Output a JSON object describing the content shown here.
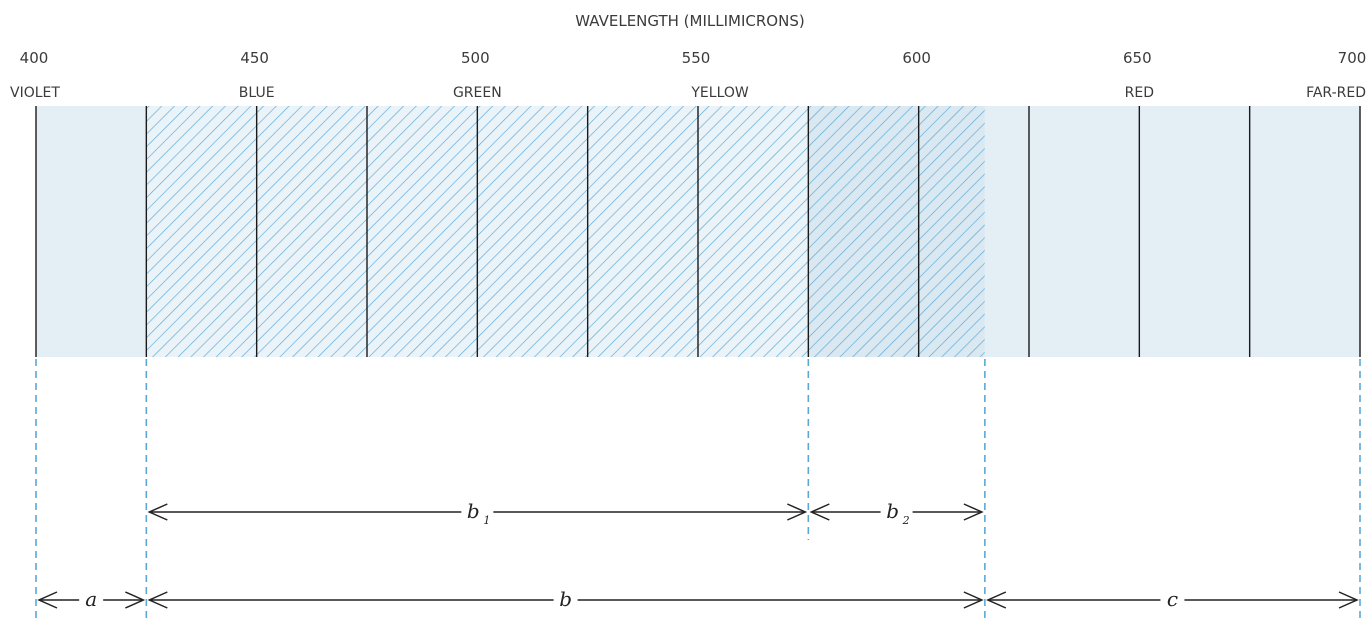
{
  "figure": {
    "axis_title": "WAVELENGTH (MILLIMICRONS)",
    "tick_labels": [
      "400",
      "450",
      "500",
      "550",
      "600",
      "650",
      "700"
    ],
    "colors": [
      {
        "wl": 400,
        "name": "VIOLET"
      },
      {
        "wl": 450,
        "name": "BLUE"
      },
      {
        "wl": 500,
        "name": "GREEN"
      },
      {
        "wl": 555,
        "name": "YELLOW"
      },
      {
        "wl": 650,
        "name": "RED"
      },
      {
        "wl": 695,
        "name": "FAR-RED"
      }
    ],
    "bands": [
      {
        "from": 400,
        "to": 425,
        "style": "plain"
      },
      {
        "from": 425,
        "to": 575,
        "style": "hatched"
      },
      {
        "from": 575,
        "to": 615,
        "style": "hatched-shaded"
      },
      {
        "from": 615,
        "to": 700,
        "style": "plain"
      }
    ],
    "accent_blue": "#5aa8d8",
    "band_fill": "#e3eef5",
    "segments": [
      {
        "name": "a",
        "sub": "",
        "from": 400,
        "to": 425,
        "row": 2
      },
      {
        "name": "b",
        "sub": "1",
        "from": 425,
        "to": 575,
        "row": 1
      },
      {
        "name": "b",
        "sub": "2",
        "from": 575,
        "to": 615,
        "row": 1
      },
      {
        "name": "b",
        "sub": "",
        "from": 425,
        "to": 615,
        "row": 2
      },
      {
        "name": "c",
        "sub": "",
        "from": 615,
        "to": 700,
        "row": 2
      }
    ]
  }
}
